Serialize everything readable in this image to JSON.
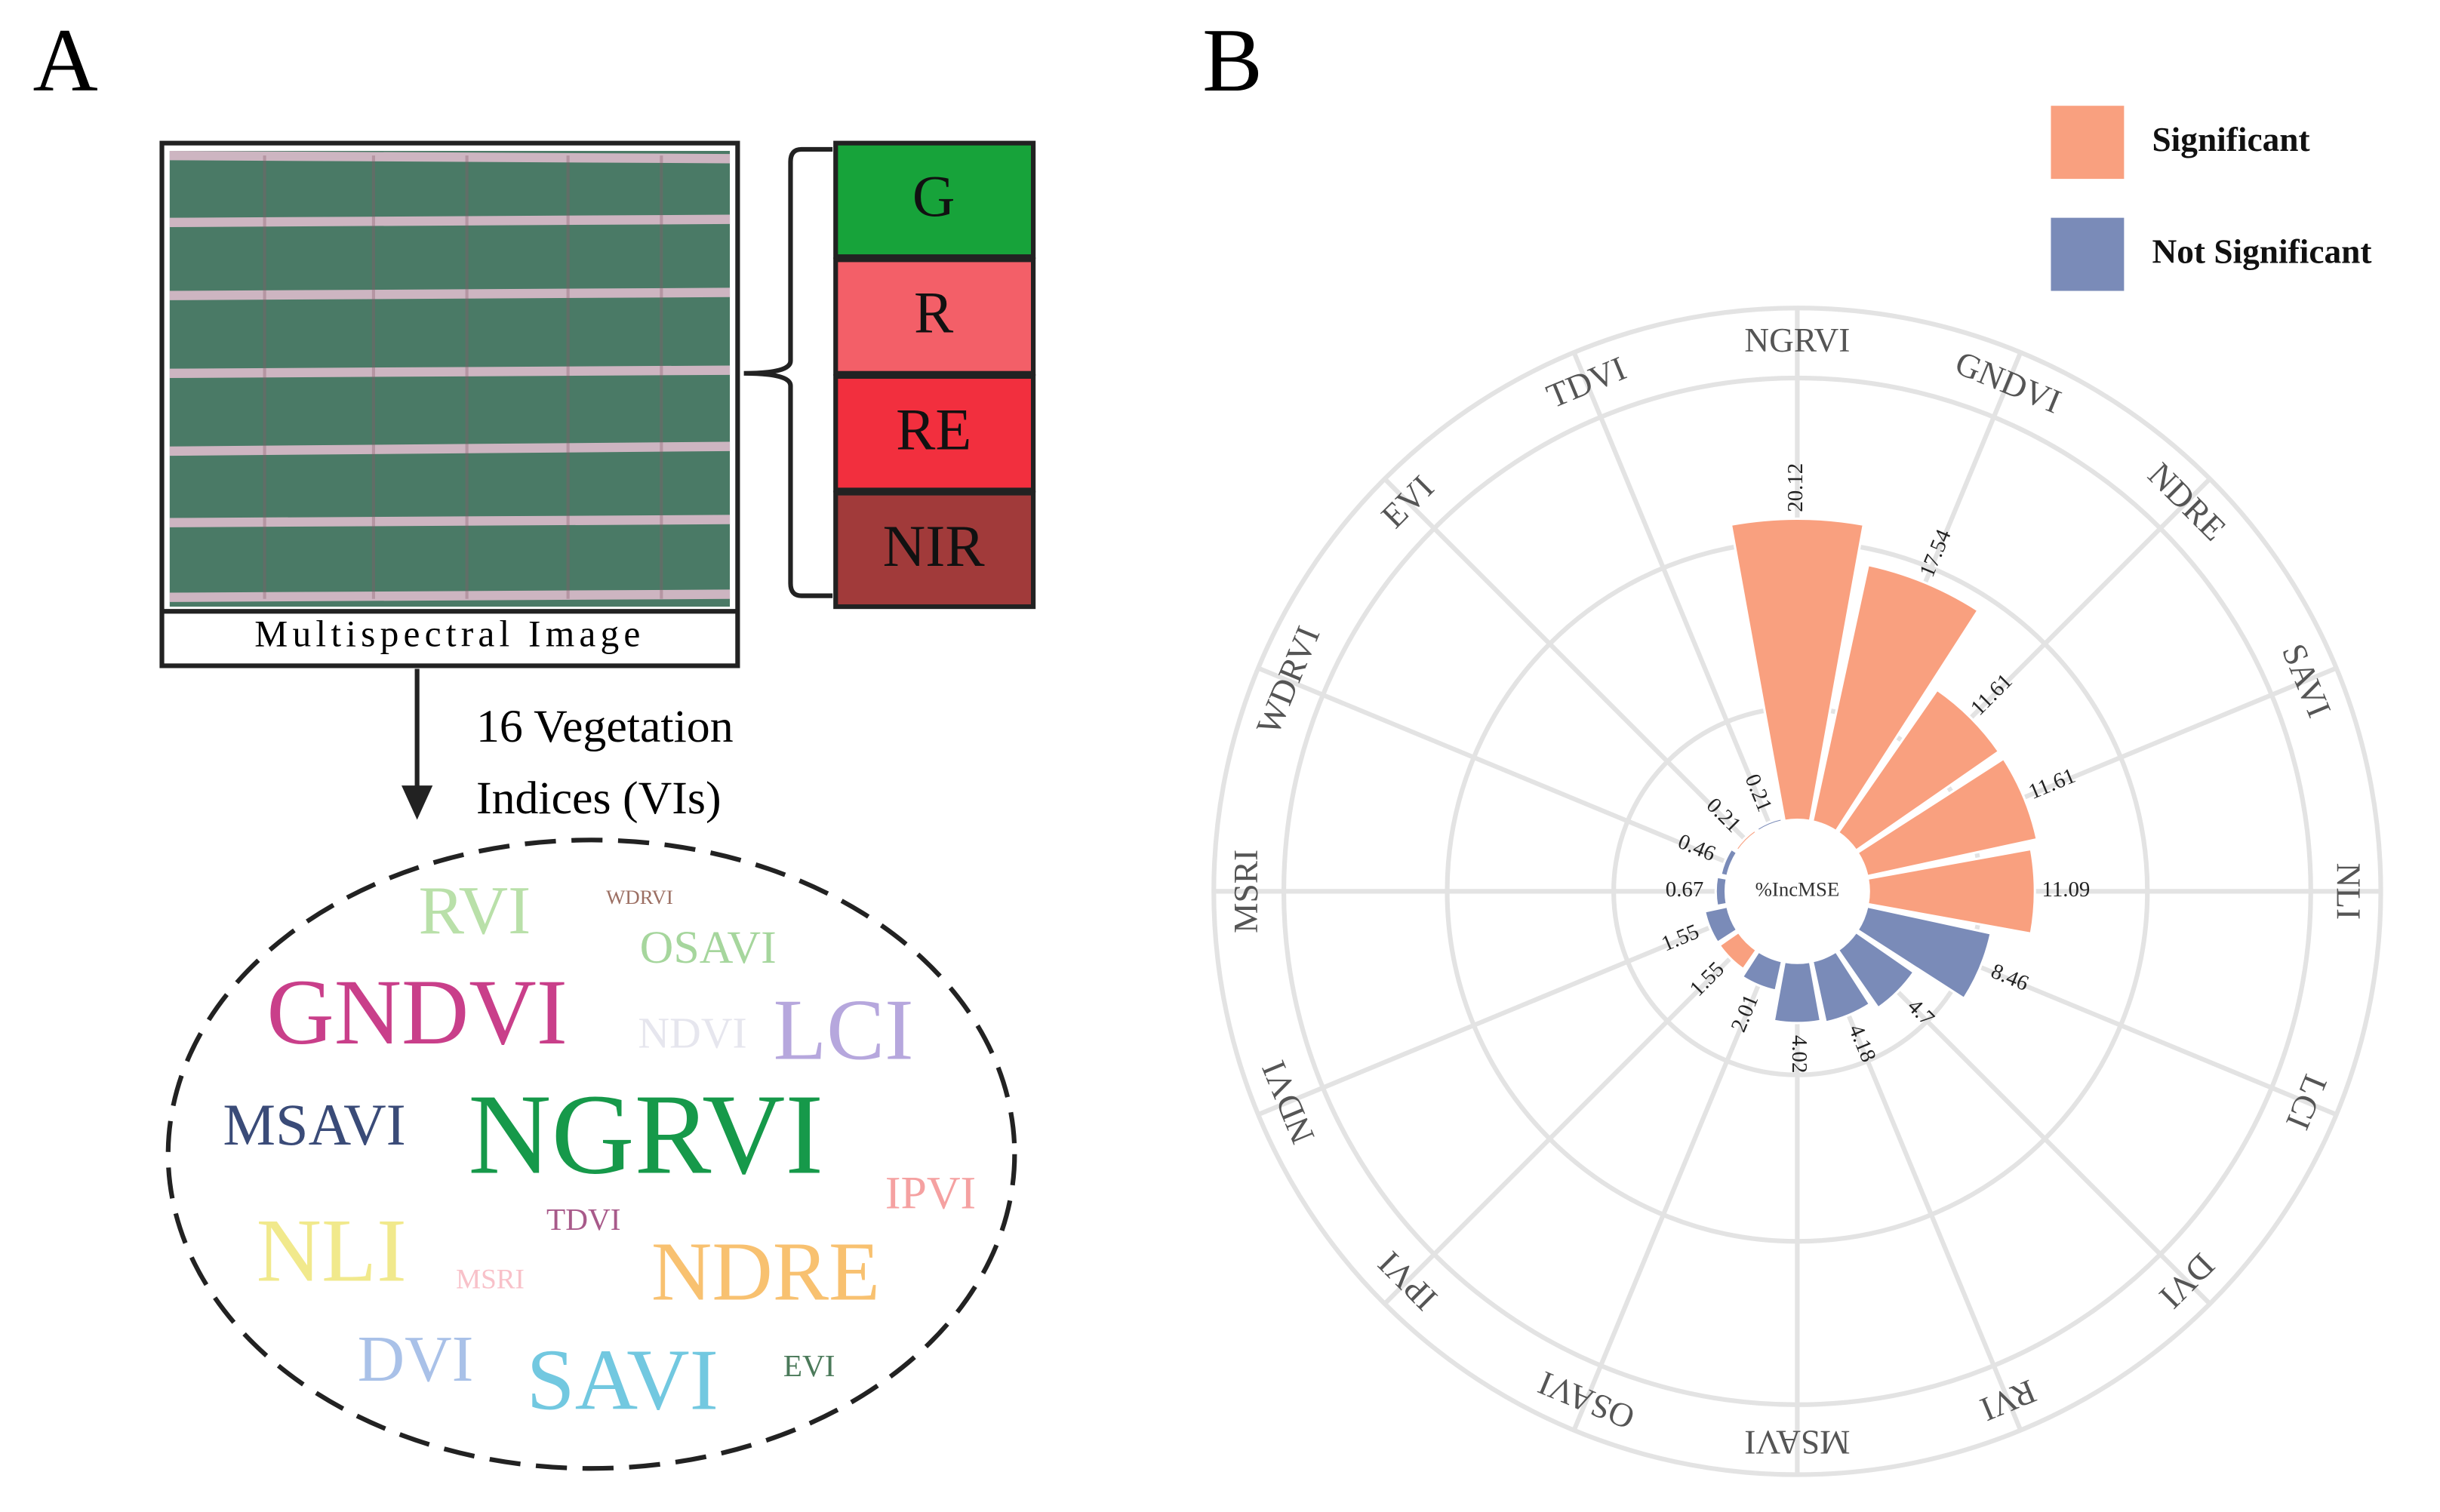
{
  "panel_labels": [
    "A",
    "B"
  ],
  "diagram": {
    "bands": [
      "G",
      "R",
      "RE",
      "NIR"
    ],
    "band_colors": [
      "#17a33a",
      "#f35f68",
      "#f22f3e",
      "#a13a3a"
    ],
    "image_caption": "Multispectral Image",
    "vi_label": [
      "16 Vegetation",
      "Indices (VIs)"
    ],
    "word_cloud": [
      {
        "text": "RVI",
        "color": "#b9e0a9"
      },
      {
        "text": "WDRVI",
        "color": "#9c6f63"
      },
      {
        "text": "OSAVI",
        "color": "#a6d69d"
      },
      {
        "text": "GNDVI",
        "color": "#c93f8a"
      },
      {
        "text": "NDVI",
        "color": "#e6e6ee"
      },
      {
        "text": "LCI",
        "color": "#b6a7dd"
      },
      {
        "text": "MSAVI",
        "color": "#3a4b78"
      },
      {
        "text": "NGRVI",
        "color": "#16994a"
      },
      {
        "text": "IPVI",
        "color": "#f5a1a1"
      },
      {
        "text": "TDVI",
        "color": "#a85a8a"
      },
      {
        "text": "NLI",
        "color": "#f1e98c"
      },
      {
        "text": "MSRI",
        "color": "#f8c1c9"
      },
      {
        "text": "NDRE",
        "color": "#f8c170"
      },
      {
        "text": "DVI",
        "color": "#a9c1e8"
      },
      {
        "text": "SAVI",
        "color": "#72c8e0"
      },
      {
        "text": "EVI",
        "color": "#4b7a5a"
      }
    ]
  },
  "chart_data": {
    "type": "polar-bar",
    "ylabel": "%IncMSE",
    "categories": [
      "NGRVI",
      "GNDVI",
      "NDRE",
      "SAVI",
      "NLI",
      "LCI",
      "DVI",
      "RVI",
      "MSAVI",
      "OSAVI",
      "IPVI",
      "NDVI",
      "MSRI",
      "WDRVI",
      "EVI",
      "TDVI"
    ],
    "series": [
      {
        "name": "Significant",
        "color": "#f9a07f",
        "values": [
          20.12,
          17.54,
          11.61,
          11.61,
          11.09,
          null,
          null,
          null,
          null,
          null,
          1.55,
          null,
          null,
          null,
          0.21,
          null
        ]
      },
      {
        "name": "Not Significant",
        "color": "#7a8bb8",
        "values": [
          null,
          null,
          null,
          null,
          null,
          8.46,
          4.7,
          4.18,
          4.02,
          2.01,
          null,
          1.55,
          0.67,
          0.46,
          null,
          0.21
        ]
      }
    ],
    "ylim": [
      0,
      34.2
    ],
    "legend": "top-right",
    "grid": true
  }
}
